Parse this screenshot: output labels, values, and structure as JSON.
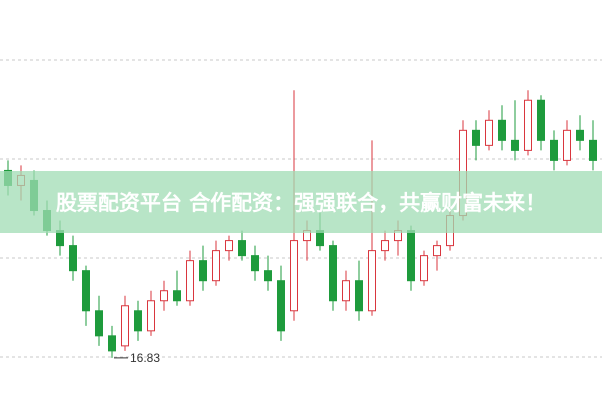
{
  "chart_data": {
    "type": "candlestick",
    "title": "股票配资平台 合作配资：强强联合，共赢财富未来！",
    "open": [
      18.7,
      18.55,
      18.6,
      18.3,
      18.1,
      17.95,
      17.7,
      17.3,
      17.05,
      16.95,
      17.3,
      17.1,
      17.4,
      17.5,
      17.4,
      17.8,
      17.6,
      17.9,
      18.0,
      17.85,
      17.7,
      17.6,
      17.3,
      18.0,
      18.1,
      17.95,
      17.4,
      17.6,
      17.3,
      17.9,
      18.0,
      18.1,
      17.6,
      17.85,
      17.95,
      18.25,
      19.1,
      18.95,
      19.2,
      19.0,
      18.9,
      19.4,
      19.0,
      18.8,
      19.1,
      19.0
    ],
    "high": [
      18.8,
      18.75,
      18.7,
      18.4,
      18.2,
      18.05,
      17.75,
      17.45,
      17.15,
      17.45,
      17.4,
      17.5,
      17.6,
      17.7,
      17.9,
      17.95,
      18.0,
      18.05,
      18.1,
      17.95,
      17.85,
      17.75,
      19.5,
      18.2,
      18.3,
      18.0,
      17.7,
      17.8,
      19.0,
      18.1,
      18.2,
      18.15,
      17.9,
      18.0,
      18.3,
      19.2,
      19.2,
      19.3,
      19.35,
      19.4,
      19.5,
      19.45,
      19.1,
      19.2,
      19.25,
      19.2
    ],
    "low": [
      18.45,
      18.4,
      18.25,
      18.05,
      17.85,
      17.6,
      17.15,
      16.95,
      16.83,
      16.9,
      17.0,
      17.05,
      17.3,
      17.35,
      17.35,
      17.5,
      17.55,
      17.8,
      17.8,
      17.6,
      17.5,
      17.0,
      17.2,
      17.8,
      17.9,
      17.3,
      17.3,
      17.2,
      17.25,
      17.8,
      17.85,
      17.5,
      17.55,
      17.7,
      17.9,
      18.2,
      18.8,
      18.9,
      18.9,
      18.8,
      18.85,
      18.9,
      18.7,
      18.75,
      18.9,
      18.7
    ],
    "close": [
      18.55,
      18.65,
      18.3,
      18.1,
      17.95,
      17.7,
      17.3,
      17.05,
      16.9,
      17.35,
      17.1,
      17.4,
      17.5,
      17.4,
      17.8,
      17.6,
      17.9,
      18.0,
      17.85,
      17.7,
      17.6,
      17.1,
      18.0,
      18.1,
      17.95,
      17.4,
      17.6,
      17.3,
      17.9,
      18.0,
      18.1,
      17.6,
      17.85,
      17.95,
      18.25,
      19.1,
      18.95,
      19.2,
      19.0,
      18.9,
      19.4,
      19.0,
      18.8,
      19.1,
      19.0,
      18.8
    ],
    "up_color": "#d9363e",
    "down_color": "#1e9b3c",
    "ylim": [
      16.4,
      20.4
    ]
  }
}
